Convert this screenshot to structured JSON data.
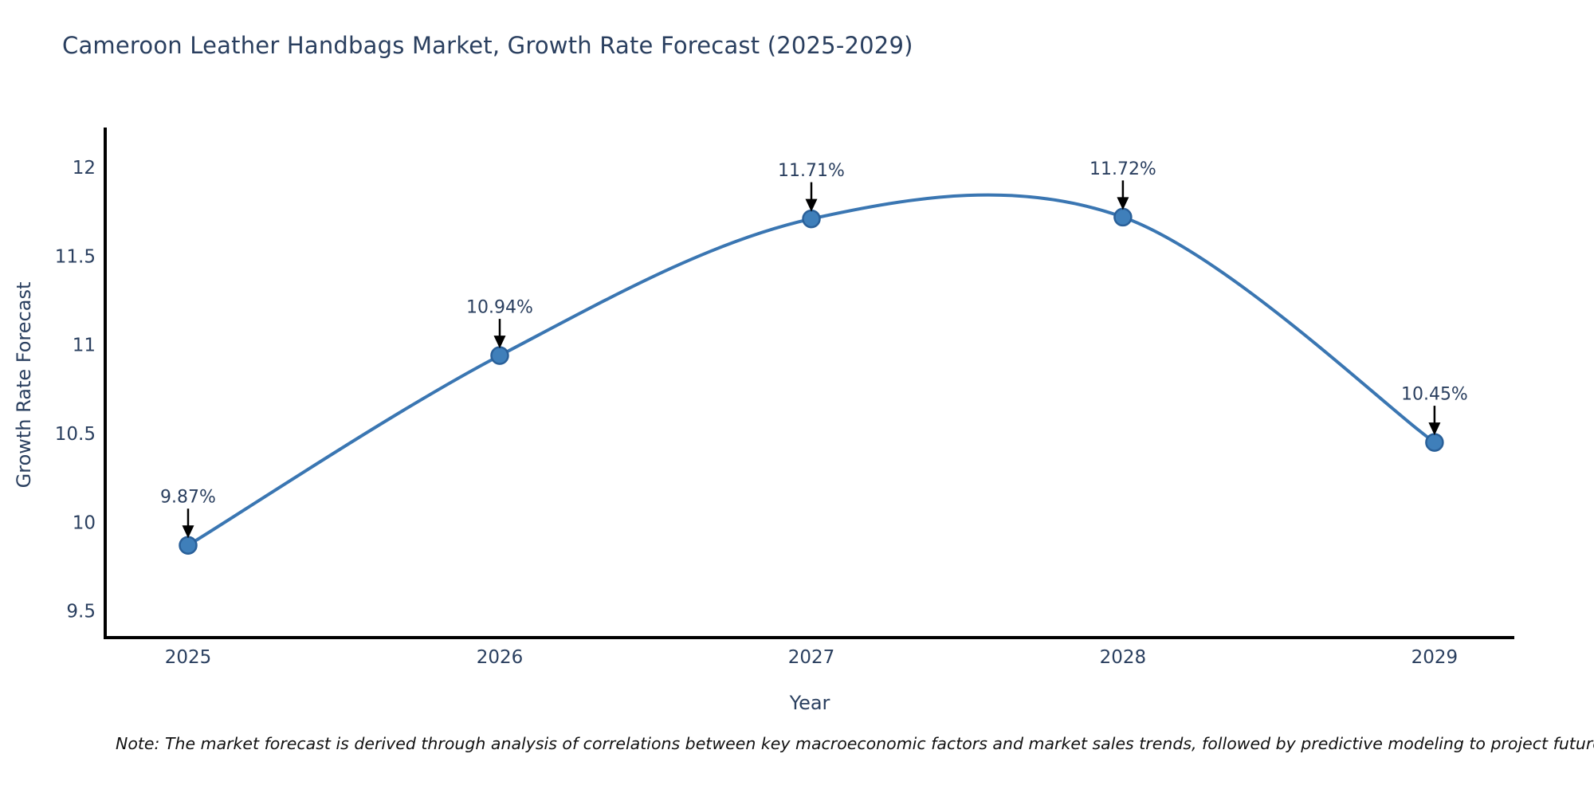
{
  "title": {
    "text": "Cameroon Leather Handbags Market, Growth Rate Forecast (2025-2029)",
    "color": "#2a3f5f"
  },
  "note": {
    "text": "Note: The market forecast is derived through analysis of correlations between key macroeconomic factors and market sales trends, followed by predictive modeling to project future sal"
  },
  "chart_data": {
    "type": "line",
    "title": "Cameroon Leather Handbags Market, Growth Rate Forecast (2025-2029)",
    "xlabel": "Year",
    "ylabel": "Growth Rate Forecast",
    "x": [
      2025,
      2026,
      2027,
      2028,
      2029
    ],
    "y": [
      9.87,
      10.94,
      11.71,
      11.72,
      10.45
    ],
    "labels": [
      "9.87%",
      "10.94%",
      "11.71%",
      "11.72%",
      "10.45%"
    ],
    "x_tick_labels": [
      "2025",
      "2026",
      "2027",
      "2028",
      "2029"
    ],
    "y_ticks": [
      9.5,
      10,
      10.5,
      11,
      11.5,
      12
    ],
    "y_tick_labels": [
      "9.5",
      "10",
      "10.5",
      "11",
      "11.5",
      "12"
    ],
    "xlim": [
      2024.734,
      2029.256
    ],
    "ylim": [
      9.35,
      12.225
    ],
    "line_shape": "spline",
    "grid": false,
    "legend": false,
    "line_color": "#3a76b2",
    "marker_color": "#3f7fba",
    "marker_border_color": "#2a6099",
    "axis_color": "#000000",
    "font_color": "#2a3f5f",
    "annotation_arrow_color": "#000000"
  }
}
